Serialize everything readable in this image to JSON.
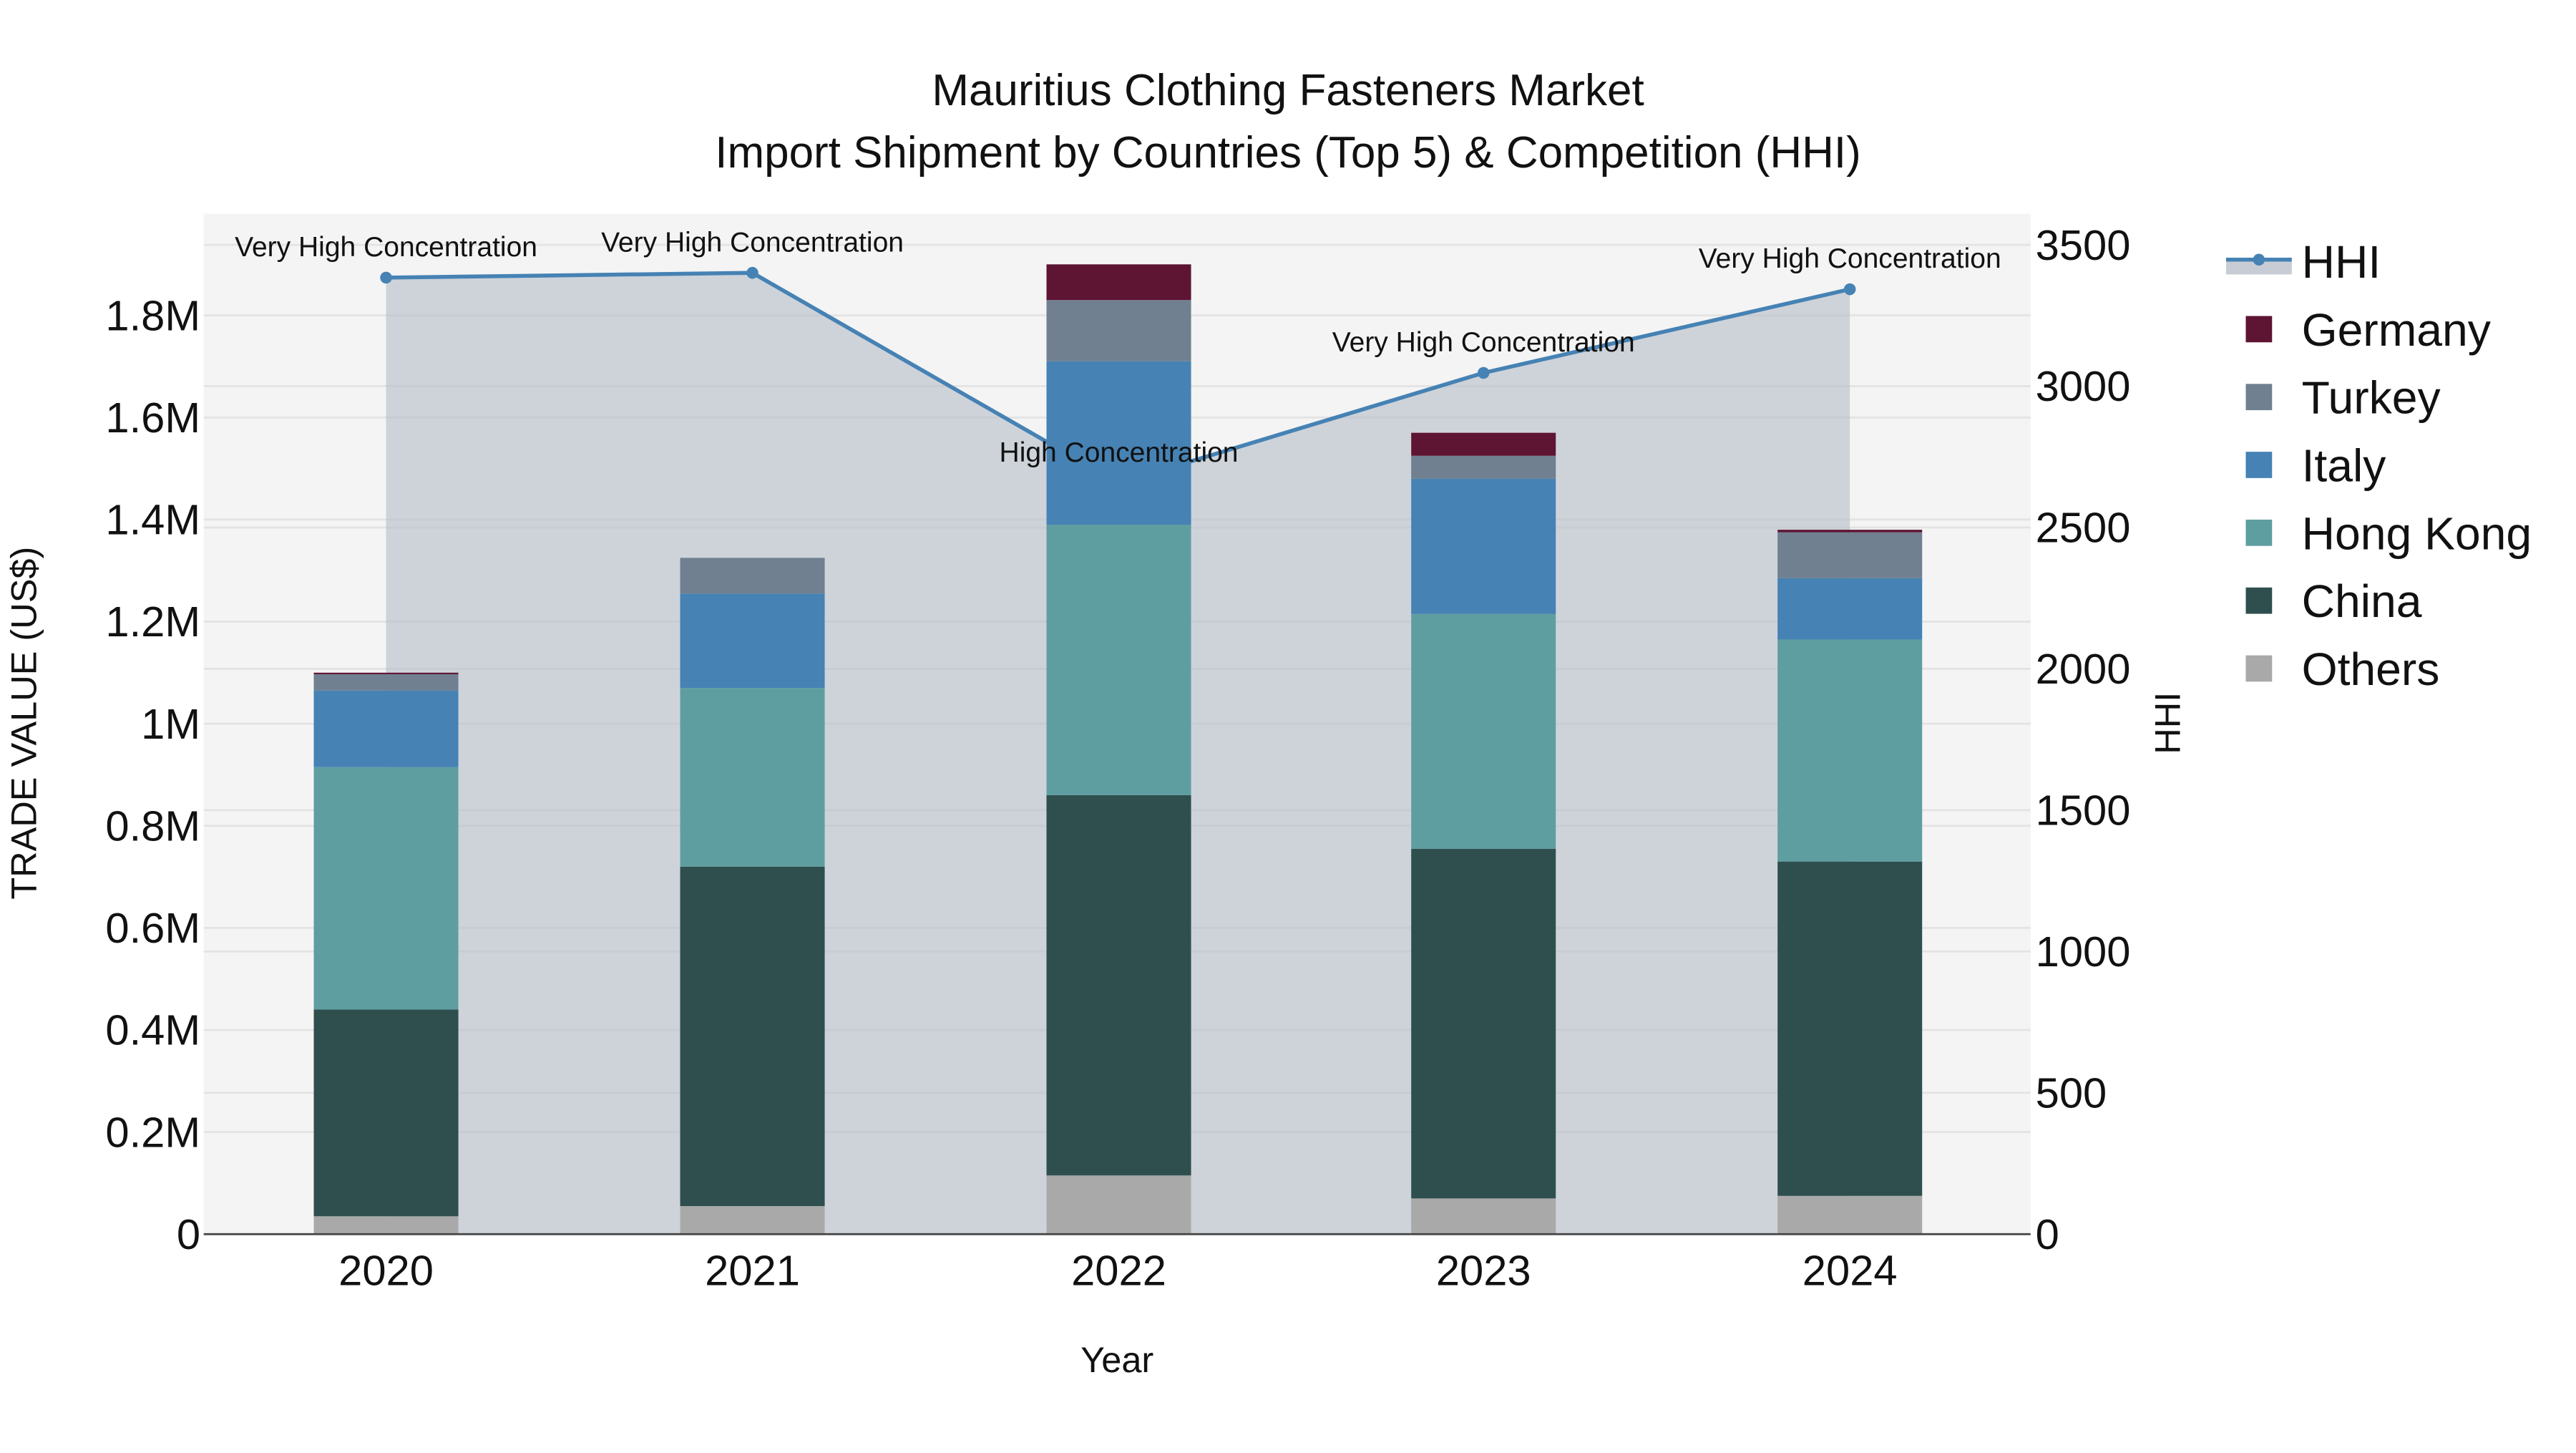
{
  "title_line1": "Mauritius Clothing Fasteners Market",
  "title_line2": "Import Shipment by Countries (Top 5) & Competition (HHI)",
  "xaxis_title": "Year",
  "yaxis_left_title": "TRADE VALUE (US$)",
  "yaxis_right_title": "HHI",
  "left_ticks": [
    "0",
    "0.2M",
    "0.4M",
    "0.6M",
    "0.8M",
    "1M",
    "1.2M",
    "1.4M",
    "1.6M",
    "1.8M"
  ],
  "right_ticks": [
    "0",
    "500",
    "1000",
    "1500",
    "2000",
    "2500",
    "3000",
    "3500"
  ],
  "legend": [
    "HHI",
    "Germany",
    "Turkey",
    "Italy",
    "Hong Kong",
    "China",
    "Others"
  ],
  "colors": {
    "HHI": "#4682b4",
    "HHI_fill": "#c8cdd5",
    "Germany": "#5e1433",
    "Turkey": "#708090",
    "Italy": "#4682b4",
    "Hong Kong": "#5f9ea0",
    "China": "#2f4f4f",
    "Others": "#a9a9a9",
    "plot_bg": "#f4f4f4"
  },
  "chart_data": {
    "type": "bar",
    "subtype": "stacked bar with line overlay (secondary axis)",
    "title": "Mauritius Clothing Fasteners Market — Import Shipment by Countries (Top 5) & Competition (HHI)",
    "xlabel": "Year",
    "ylabel": "TRADE VALUE (US$)",
    "y2label": "HHI",
    "ylim": [
      0,
      1960000
    ],
    "y2lim": [
      0,
      3640
    ],
    "categories": [
      "2020",
      "2021",
      "2022",
      "2023",
      "2024"
    ],
    "series": [
      {
        "name": "Others",
        "values": [
          35000,
          55000,
          115000,
          70000,
          75000
        ]
      },
      {
        "name": "China",
        "values": [
          405000,
          665000,
          745000,
          685000,
          655000
        ]
      },
      {
        "name": "Hong Kong",
        "values": [
          475000,
          350000,
          530000,
          460000,
          435000
        ]
      },
      {
        "name": "Italy",
        "values": [
          150000,
          185000,
          320000,
          265000,
          120000
        ]
      },
      {
        "name": "Turkey",
        "values": [
          32000,
          70000,
          120000,
          45000,
          90000
        ]
      },
      {
        "name": "Germany",
        "values": [
          3000,
          0,
          70000,
          45000,
          5000
        ]
      }
    ],
    "line_series": {
      "name": "HHI",
      "axis": "right",
      "values": [
        3384,
        3401,
        2657,
        3047,
        3343
      ],
      "annotations": [
        "Very High Concentration",
        "Very High Concentration",
        "High Concentration",
        "Very High Concentration",
        "Very High Concentration"
      ]
    },
    "legend_position": "right",
    "grid": true
  }
}
